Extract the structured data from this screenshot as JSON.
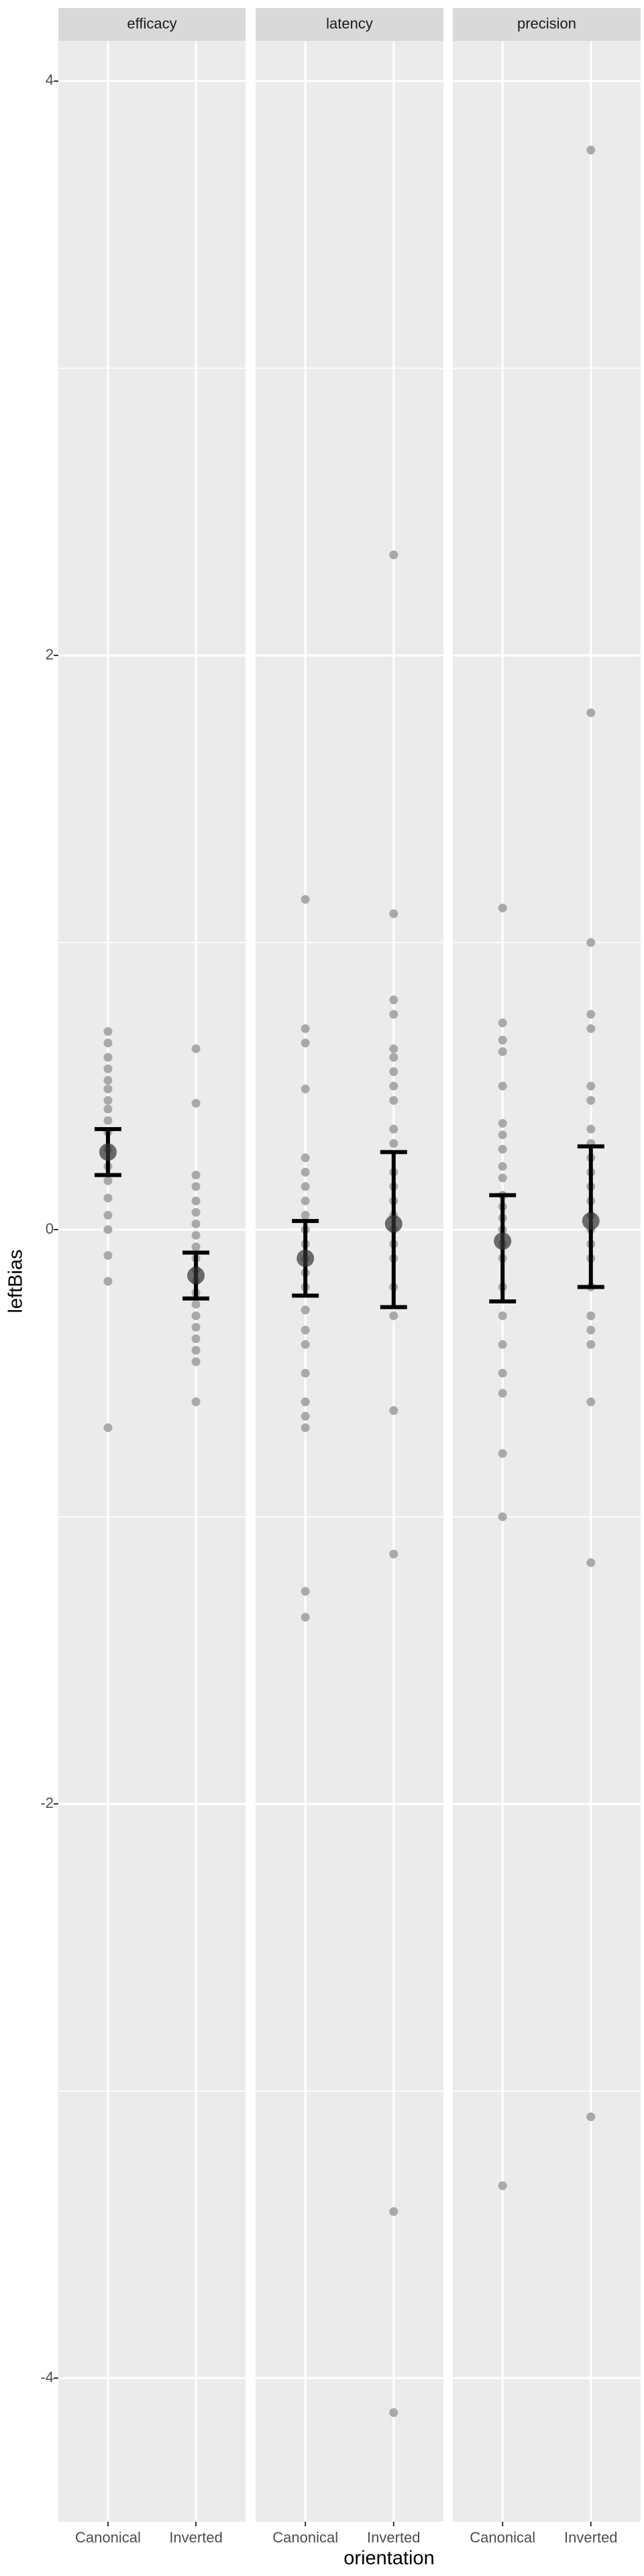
{
  "chart_data": {
    "type": "faceted-dot-errorbar",
    "x_label": "orientation",
    "y_label": "leftBias",
    "categories": [
      "Canonical",
      "Inverted"
    ],
    "ylim": [
      -4.5,
      4.14
    ],
    "yticks": [
      -4,
      -2,
      0,
      2,
      4
    ],
    "minor_yticks": [
      -3,
      -1,
      1,
      3
    ],
    "grid": true,
    "point_color": "#a9a9a9",
    "mean_color": "#333333",
    "errorbar_color": "#000000",
    "panels": [
      {
        "title": "efficacy",
        "groups": [
          {
            "points": [
              0.69,
              0.65,
              0.6,
              0.56,
              0.52,
              0.49,
              0.45,
              0.42,
              0.38,
              0.34,
              0.28,
              0.22,
              0.17,
              0.11,
              0.05,
              0,
              -0.09,
              -0.18,
              -0.69
            ],
            "mean": 0.27,
            "upper": 0.35,
            "lower": 0.19
          },
          {
            "points": [
              0.63,
              0.44,
              0.19,
              0.15,
              0.1,
              0.06,
              0.02,
              -0.02,
              -0.06,
              -0.1,
              -0.14,
              -0.18,
              -0.22,
              -0.26,
              -0.3,
              -0.34,
              -0.38,
              -0.42,
              -0.46,
              -0.6
            ],
            "mean": -0.16,
            "upper": -0.08,
            "lower": -0.24
          }
        ]
      },
      {
        "title": "latency",
        "groups": [
          {
            "points": [
              1.15,
              0.7,
              0.65,
              0.49,
              0.25,
              0.2,
              0.15,
              0.1,
              0.05,
              0,
              -0.05,
              -0.1,
              -0.15,
              -0.2,
              -0.28,
              -0.35,
              -0.4,
              -0.5,
              -0.6,
              -0.65,
              -0.69,
              -1.26,
              -1.35
            ],
            "mean": -0.1,
            "upper": 0.03,
            "lower": -0.23
          },
          {
            "points": [
              2.35,
              1.1,
              0.8,
              0.75,
              0.63,
              0.6,
              0.55,
              0.5,
              0.45,
              0.35,
              0.3,
              0.2,
              0.15,
              0.1,
              0.05,
              0,
              -0.05,
              -0.1,
              -0.2,
              -0.3,
              -0.63,
              -1.13,
              -3.42,
              -4.12
            ],
            "mean": 0.02,
            "upper": 0.27,
            "lower": -0.27
          }
        ]
      },
      {
        "title": "precision",
        "groups": [
          {
            "points": [
              1.12,
              0.72,
              0.66,
              0.62,
              0.5,
              0.37,
              0.33,
              0.28,
              0.22,
              0.18,
              0.12,
              0.08,
              0.04,
              0,
              -0.05,
              -0.1,
              -0.2,
              -0.3,
              -0.4,
              -0.5,
              -0.57,
              -0.78,
              -1.0,
              -3.33
            ],
            "mean": -0.04,
            "upper": 0.12,
            "lower": -0.25
          },
          {
            "points": [
              3.76,
              1.8,
              1.0,
              0.75,
              0.7,
              0.5,
              0.45,
              0.35,
              0.3,
              0.25,
              0.2,
              0.15,
              0.1,
              0.05,
              0,
              -0.05,
              -0.1,
              -0.2,
              -0.3,
              -0.35,
              -0.4,
              -0.6,
              -1.16,
              -3.09
            ],
            "mean": 0.03,
            "upper": 0.29,
            "lower": -0.2
          }
        ]
      }
    ]
  }
}
